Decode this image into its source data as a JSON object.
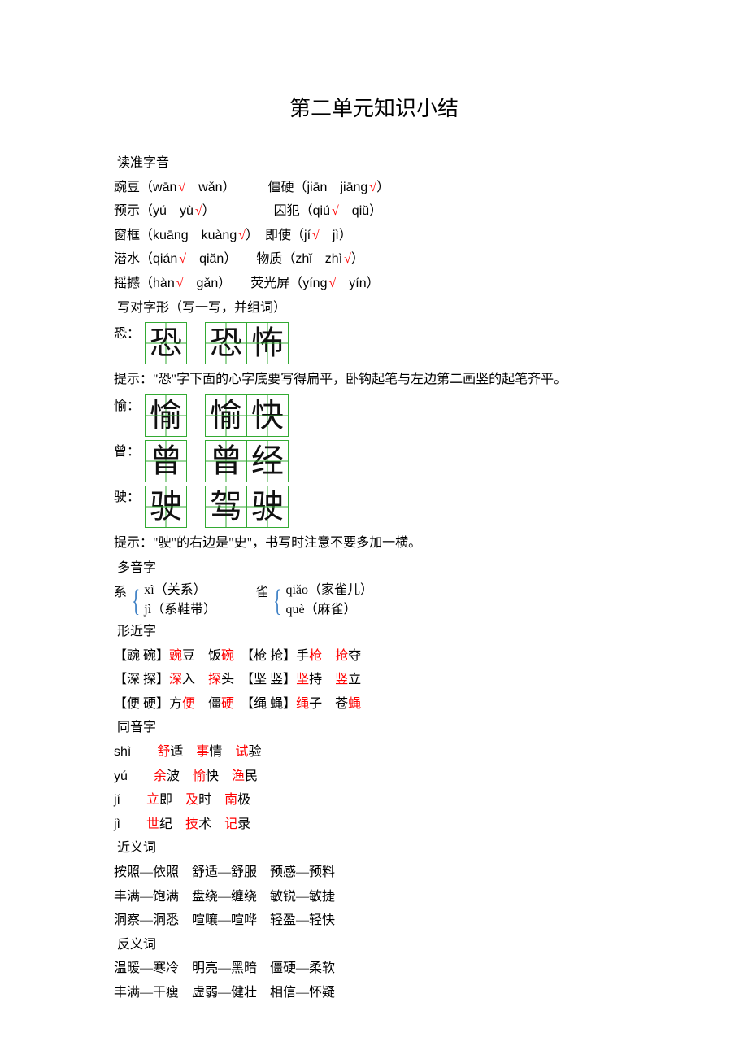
{
  "title": "第二单元知识小结",
  "sections": {
    "pron_head": "读准字音",
    "pron_rows": [
      {
        "a_pre": "豌豆（",
        "a_p1": "wān",
        "a_chk1": true,
        "a_mid": "　",
        "a_p2": "wǎn",
        "a_chk2": false,
        "a_post": "）",
        "gap": "　　　",
        "b_pre": "僵硬（",
        "b_p1": "jiān",
        "b_chk1": false,
        "b_mid": "　",
        "b_p2": "jiāng",
        "b_chk2": true,
        "b_post": "）"
      },
      {
        "a_pre": "预示（",
        "a_p1": "yú",
        "a_chk1": false,
        "a_mid": "　",
        "a_p2": "yù",
        "a_chk2": true,
        "a_post": "）",
        "gap": "　　　　　",
        "b_pre": "囚犯（",
        "b_p1": "qiú",
        "b_chk1": true,
        "b_mid": "　",
        "b_p2": "qiǔ",
        "b_chk2": false,
        "b_post": "）"
      },
      {
        "a_pre": "窗框（",
        "a_p1": "kuāng",
        "a_chk1": false,
        "a_mid": "　",
        "a_p2": "kuàng",
        "a_chk2": true,
        "a_post": "）",
        "gap": "　",
        "b_pre": "即使（",
        "b_p1": "jí",
        "b_chk1": true,
        "b_mid": "　",
        "b_p2": "jì",
        "b_chk2": false,
        "b_post": "）"
      },
      {
        "a_pre": "潜水（",
        "a_p1": "qián",
        "a_chk1": true,
        "a_mid": "　",
        "a_p2": "qiǎn",
        "a_chk2": false,
        "a_post": "）",
        "gap": "　　",
        "b_pre": "物质（",
        "b_p1": "zhǐ",
        "b_chk1": false,
        "b_mid": "　",
        "b_p2": "zhì",
        "b_chk2": true,
        "b_post": "）"
      },
      {
        "a_pre": "摇撼（",
        "a_p1": "hàn",
        "a_chk1": true,
        "a_mid": "　",
        "a_p2": "gǎn",
        "a_chk2": false,
        "a_post": "）",
        "gap": "　　",
        "b_pre": "荧光屏（",
        "b_p1": "yíng",
        "b_chk1": true,
        "b_mid": "　",
        "b_p2": "yín",
        "b_chk2": false,
        "b_post": "）"
      }
    ],
    "shape_head": "写对字形（写一写，并组词）",
    "shape_items": [
      {
        "label": "恐：",
        "single": "恐",
        "word": [
          "恐",
          "怖"
        ]
      },
      {
        "label": "愉：",
        "single": "愉",
        "word": [
          "愉",
          "快"
        ]
      },
      {
        "label": "曾：",
        "single": "曾",
        "word": [
          "曾",
          "经"
        ]
      },
      {
        "label": "驶：",
        "single": "驶",
        "word": [
          "驾",
          "驶"
        ]
      }
    ],
    "hint1": "提示：\"恐\"字下面的心字底要写得扁平，卧钩起笔与左边第二画竖的起笔齐平。",
    "hint2": "提示：\"驶\"的右边是\"史\"，书写时注意不要多加一横。",
    "duo_head": "多音字",
    "duo": [
      {
        "ch": "系",
        "r1": "xì（关系）",
        "r2": "jì（系鞋带）"
      },
      {
        "ch": "雀",
        "r1": "qiǎo（家雀儿）",
        "r2": "què（麻雀）"
      }
    ],
    "xing_head": "形近字",
    "xing_rows": [
      [
        {
          "pair": "【豌 碗】",
          "w": [
            [
              "豌",
              "豆"
            ],
            [
              "饭",
              "碗"
            ]
          ]
        },
        {
          "pair": "【枪 抢】",
          "w": [
            [
              "手",
              "枪"
            ],
            [
              "抢",
              "夺"
            ]
          ]
        }
      ],
      [
        {
          "pair": "【深 探】",
          "w": [
            [
              "深",
              "入"
            ],
            [
              "探",
              "头"
            ]
          ]
        },
        {
          "pair": "【坚 竖】",
          "w": [
            [
              "坚",
              "持"
            ],
            [
              "竖",
              "立"
            ]
          ]
        }
      ],
      [
        {
          "pair": "【便 硬】",
          "w": [
            [
              "方",
              "便"
            ],
            [
              "僵",
              "硬"
            ]
          ]
        },
        {
          "pair": "【绳 蝇】",
          "w": [
            [
              "绳",
              "子"
            ],
            [
              "苍",
              "蝇"
            ]
          ]
        }
      ]
    ],
    "tong_head": "同音字",
    "tong_rows": [
      {
        "py": "shì",
        "w": [
          [
            "舒",
            "适"
          ],
          [
            "事",
            "情"
          ],
          [
            "试",
            "验"
          ]
        ]
      },
      {
        "py": "yú",
        "w": [
          [
            "余",
            "波"
          ],
          [
            "愉",
            "快"
          ],
          [
            "渔",
            "民"
          ]
        ]
      },
      {
        "py": "jí",
        "w": [
          [
            "立",
            "即"
          ],
          [
            "及",
            "时"
          ],
          [
            "南",
            "极"
          ]
        ]
      },
      {
        "py": "jì",
        "w": [
          [
            "世",
            "纪"
          ],
          [
            "技",
            "术"
          ],
          [
            "记",
            "录"
          ]
        ]
      }
    ],
    "jin_head": "近义词",
    "jin_rows": [
      "按照—依照　舒适—舒服　预感—预料",
      "丰满—饱满　盘绕—缠绕　敏锐—敏捷",
      "洞察—洞悉　喧嚷—喧哗　轻盈—轻快"
    ],
    "fan_head": "反义词",
    "fan_rows": [
      "温暖—寒冷　明亮—黑暗　僵硬—柔软",
      "丰满—干瘦　虚弱—健壮　相信—怀疑"
    ]
  }
}
